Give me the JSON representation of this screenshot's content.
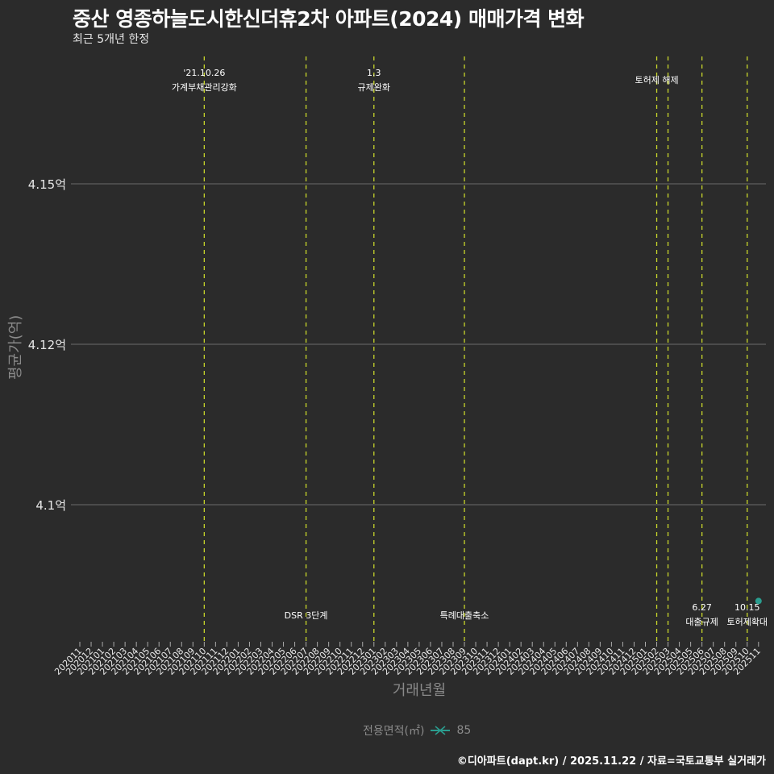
{
  "header": {
    "title": "중산 영종하늘도시한신더휴2차 아파트(2024) 매매가격 변화",
    "subtitle": "최근 5개년 한정"
  },
  "footer": {
    "credit": "©디아파트(dapt.kr) / 2025.11.22 / 자료=국토교통부 실거래가"
  },
  "legend": {
    "title": "전용면적(㎡)",
    "items": [
      {
        "label": "85",
        "color": "#2a9d8f"
      }
    ]
  },
  "colors": {
    "background": "#2b2b2b",
    "gridline": "#6b6b6b",
    "event_line": "#c8d62b",
    "series": "#2a9d8f"
  },
  "chart_data": {
    "type": "scatter",
    "title": "중산 영종하늘도시한신더휴2차 아파트(2024) 매매가격 변화",
    "subtitle": "최근 5개년 한정",
    "xlabel": "거래년월",
    "ylabel": "평균가(억)",
    "y_ticks": [
      {
        "value": 4.15,
        "label": "4.15억"
      },
      {
        "value": 4.125,
        "label": "4.12억"
      },
      {
        "value": 4.1,
        "label": "4.1억"
      }
    ],
    "ylim": [
      4.08,
      4.165
    ],
    "categories": [
      "202011",
      "202012",
      "202101",
      "202102",
      "202103",
      "202104",
      "202105",
      "202106",
      "202107",
      "202108",
      "202109",
      "202110",
      "202111",
      "202112",
      "202201",
      "202202",
      "202203",
      "202204",
      "202205",
      "202206",
      "202207",
      "202208",
      "202209",
      "202210",
      "202211",
      "202212",
      "202301",
      "202302",
      "202303",
      "202304",
      "202305",
      "202306",
      "202307",
      "202308",
      "202309",
      "202310",
      "202311",
      "202312",
      "202401",
      "202402",
      "202403",
      "202404",
      "202405",
      "202406",
      "202407",
      "202408",
      "202409",
      "202410",
      "202411",
      "202412",
      "202501",
      "202502",
      "202503",
      "202504",
      "202505",
      "202506",
      "202507",
      "202508",
      "202509",
      "202510",
      "202511"
    ],
    "series": [
      {
        "name": "85",
        "points": [
          {
            "x": "202511",
            "y": 4.085
          }
        ]
      }
    ],
    "legend_title": "전용면적(㎡)",
    "legend_position": "bottom",
    "grid": "horizontal",
    "annotations": [
      {
        "x": "202110",
        "date": "'21.10.26",
        "label": "가계부채관리강화",
        "position": "top"
      },
      {
        "x": "202207",
        "date": "",
        "label": "DSR 3단계",
        "position": "bottom"
      },
      {
        "x": "202301",
        "date": "1.3",
        "label": "규제완화",
        "position": "top"
      },
      {
        "x": "202309",
        "date": "",
        "label": "특례대출축소",
        "position": "bottom"
      },
      {
        "x": "202502",
        "date": "",
        "label": "토허제 해제",
        "position": "top"
      },
      {
        "x": "202503",
        "date": "",
        "label": "",
        "position": "none"
      },
      {
        "x": "202506",
        "date": "6.27",
        "label": "대출규제",
        "position": "bottom"
      },
      {
        "x": "202510",
        "date": "10.15",
        "label": "토허제확대",
        "position": "bottom"
      }
    ]
  }
}
